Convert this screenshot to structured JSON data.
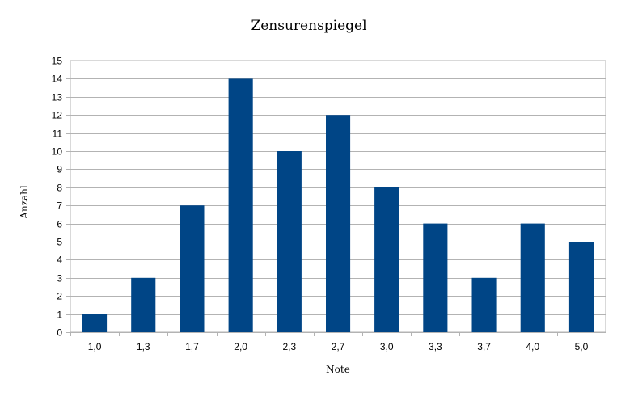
{
  "chart_data": {
    "type": "bar",
    "title": "Zensurenspiegel",
    "xlabel": "Note",
    "ylabel": "Anzahl",
    "categories": [
      "1,0",
      "1,3",
      "1,7",
      "2,0",
      "2,3",
      "2,7",
      "3,0",
      "3,3",
      "3,7",
      "4,0",
      "5,0"
    ],
    "values": [
      1,
      3,
      7,
      14,
      10,
      12,
      8,
      6,
      3,
      6,
      5
    ],
    "ylim": [
      0,
      15
    ],
    "yticks": [
      "0",
      "1",
      "2",
      "3",
      "4",
      "5",
      "6",
      "7",
      "8",
      "9",
      "10",
      "11",
      "12",
      "13",
      "14",
      "15"
    ],
    "grid": true,
    "legend": "none",
    "bar_color": "#004586"
  }
}
